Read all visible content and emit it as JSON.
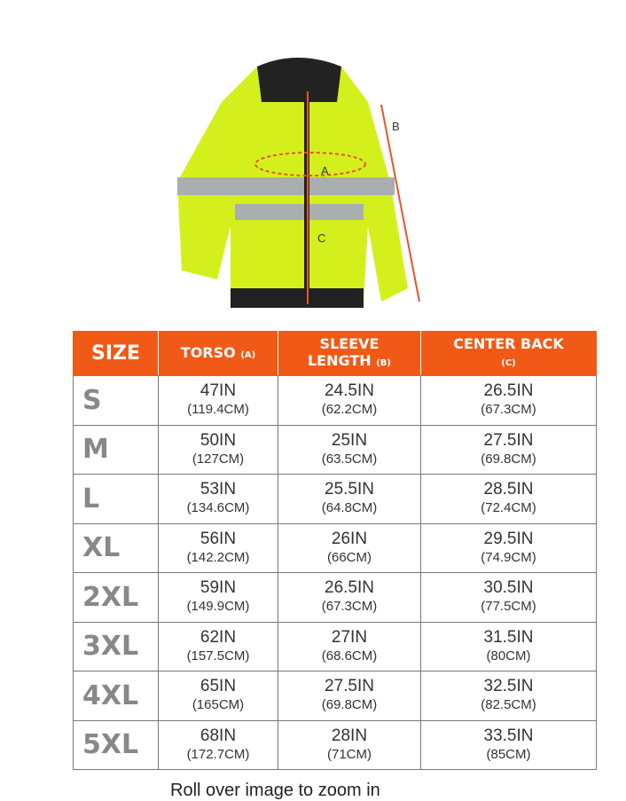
{
  "diagram_labels": {
    "a": "A",
    "b": "B",
    "c": "C"
  },
  "colors": {
    "header": "#f15a16",
    "jacket": "#d4f01c",
    "arrow": "#e8542a"
  },
  "headers": [
    {
      "main": "SIZE",
      "sub": ""
    },
    {
      "main": "TORSO",
      "sub": "(A)"
    },
    {
      "main": "SLEEVE LENGTH",
      "sub": "(B)"
    },
    {
      "main": "CENTER BACK",
      "sub": "(C)"
    }
  ],
  "rows": [
    {
      "size": "S",
      "torso": [
        "47IN",
        "(119.4CM)"
      ],
      "sleeve": [
        "24.5IN",
        "(62.2CM)"
      ],
      "back": [
        "26.5IN",
        "(67.3CM)"
      ]
    },
    {
      "size": "M",
      "torso": [
        "50IN",
        "(127CM)"
      ],
      "sleeve": [
        "25IN",
        "(63.5CM)"
      ],
      "back": [
        "27.5IN",
        "(69.8CM)"
      ]
    },
    {
      "size": "L",
      "torso": [
        "53IN",
        "(134.6CM)"
      ],
      "sleeve": [
        "25.5IN",
        "(64.8CM)"
      ],
      "back": [
        "28.5IN",
        "(72.4CM)"
      ]
    },
    {
      "size": "XL",
      "torso": [
        "56IN",
        "(142.2CM)"
      ],
      "sleeve": [
        "26IN",
        "(66CM)"
      ],
      "back": [
        "29.5IN",
        "(74.9CM)"
      ]
    },
    {
      "size": "2XL",
      "torso": [
        "59IN",
        "(149.9CM)"
      ],
      "sleeve": [
        "26.5IN",
        "(67.3CM)"
      ],
      "back": [
        "30.5IN",
        "(77.5CM)"
      ]
    },
    {
      "size": "3XL",
      "torso": [
        "62IN",
        "(157.5CM)"
      ],
      "sleeve": [
        "27IN",
        "(68.6CM)"
      ],
      "back": [
        "31.5IN",
        "(80CM)"
      ]
    },
    {
      "size": "4XL",
      "torso": [
        "65IN",
        "(165CM)"
      ],
      "sleeve": [
        "27.5IN",
        "(69.8CM)"
      ],
      "back": [
        "32.5IN",
        "(82.5CM)"
      ]
    },
    {
      "size": "5XL",
      "torso": [
        "68IN",
        "(172.7CM)"
      ],
      "sleeve": [
        "28IN",
        "(71CM)"
      ],
      "back": [
        "33.5IN",
        "(85CM)"
      ]
    }
  ],
  "caption": "Roll over image to zoom in"
}
